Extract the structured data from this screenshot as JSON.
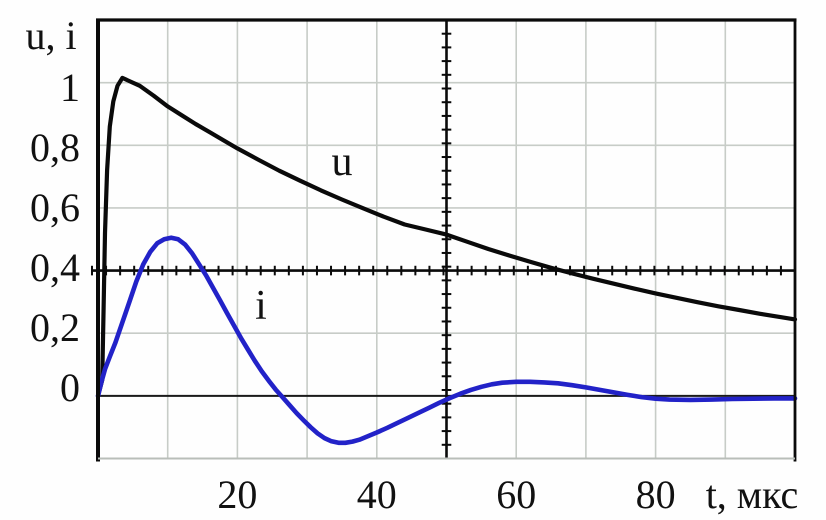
{
  "figure": {
    "y_axis_title": "u, i",
    "x_axis_title": "t, мкс",
    "curve_label_u": "u",
    "curve_label_i": "i",
    "background_color": "#fefefe",
    "text_color": "#111111"
  },
  "chart_data": {
    "type": "line",
    "title": "",
    "xlabel": "t, мкс",
    "ylabel": "u, i",
    "xlim": [
      0,
      100
    ],
    "ylim": [
      -0.2,
      1.2
    ],
    "x_tick_values": [
      20,
      40,
      60,
      80
    ],
    "x_tick_labels": [
      "20",
      "40",
      "60",
      "80"
    ],
    "y_tick_values": [
      1,
      0.8,
      0.6,
      0.4,
      0.2,
      0
    ],
    "y_tick_labels": [
      "1",
      "0,8",
      "0,6",
      "0,4",
      "0,2",
      "0"
    ],
    "grid": {
      "enabled": true,
      "x_step": 10,
      "y_step": 0.2,
      "color": "#c7ccc7"
    },
    "axes_cross_at": {
      "x": 50,
      "y": 0.4
    },
    "zero_line_y": 0,
    "legend_position": "none",
    "series": [
      {
        "name": "u",
        "color": "#0a0a0a",
        "width": 4.2,
        "points": [
          [
            0,
            0
          ],
          [
            0.6,
            0.05
          ],
          [
            0.8,
            0.28
          ],
          [
            1.0,
            0.52
          ],
          [
            1.3,
            0.72
          ],
          [
            1.7,
            0.86
          ],
          [
            2.2,
            0.94
          ],
          [
            2.8,
            0.99
          ],
          [
            3.5,
            1.015
          ],
          [
            4.5,
            1.005
          ],
          [
            6,
            0.99
          ],
          [
            8,
            0.958
          ],
          [
            10,
            0.924
          ],
          [
            12,
            0.896
          ],
          [
            14,
            0.868
          ],
          [
            16,
            0.842
          ],
          [
            18,
            0.816
          ],
          [
            20,
            0.79
          ],
          [
            23,
            0.754
          ],
          [
            26,
            0.719
          ],
          [
            29,
            0.687
          ],
          [
            32,
            0.656
          ],
          [
            35,
            0.627
          ],
          [
            38,
            0.599
          ],
          [
            41,
            0.572
          ],
          [
            44,
            0.547
          ],
          [
            47,
            0.531
          ],
          [
            50,
            0.515
          ],
          [
            53,
            0.492
          ],
          [
            56,
            0.469
          ],
          [
            59,
            0.448
          ],
          [
            62,
            0.428
          ],
          [
            65,
            0.409
          ],
          [
            68,
            0.391
          ],
          [
            71,
            0.374
          ],
          [
            74,
            0.358
          ],
          [
            77,
            0.342
          ],
          [
            80,
            0.327
          ],
          [
            83,
            0.313
          ],
          [
            86,
            0.299
          ],
          [
            89,
            0.286
          ],
          [
            92,
            0.274
          ],
          [
            95,
            0.262
          ],
          [
            98,
            0.251
          ],
          [
            100,
            0.244
          ]
        ]
      },
      {
        "name": "i",
        "color": "#2222c8",
        "width": 4.6,
        "points": [
          [
            0,
            0
          ],
          [
            0.5,
            0.045
          ],
          [
            1,
            0.085
          ],
          [
            1.7,
            0.125
          ],
          [
            2.5,
            0.17
          ],
          [
            3.5,
            0.235
          ],
          [
            4.5,
            0.3
          ],
          [
            5.5,
            0.365
          ],
          [
            6.5,
            0.42
          ],
          [
            7.5,
            0.46
          ],
          [
            8.5,
            0.487
          ],
          [
            9.5,
            0.5
          ],
          [
            10.5,
            0.505
          ],
          [
            11.5,
            0.5
          ],
          [
            12.5,
            0.483
          ],
          [
            13.5,
            0.455
          ],
          [
            14.5,
            0.42
          ],
          [
            15.5,
            0.385
          ],
          [
            16.5,
            0.345
          ],
          [
            17.5,
            0.305
          ],
          [
            18.5,
            0.265
          ],
          [
            19.5,
            0.225
          ],
          [
            20.5,
            0.185
          ],
          [
            21.5,
            0.148
          ],
          [
            22.5,
            0.112
          ],
          [
            23.5,
            0.078
          ],
          [
            24.5,
            0.048
          ],
          [
            25.5,
            0.02
          ],
          [
            26.5,
            -0.005
          ],
          [
            27.5,
            -0.03
          ],
          [
            28.5,
            -0.055
          ],
          [
            29.5,
            -0.078
          ],
          [
            30.5,
            -0.1
          ],
          [
            31.5,
            -0.12
          ],
          [
            32.5,
            -0.135
          ],
          [
            33.5,
            -0.145
          ],
          [
            34.5,
            -0.15
          ],
          [
            35.5,
            -0.15
          ],
          [
            36.5,
            -0.146
          ],
          [
            37.5,
            -0.14
          ],
          [
            38.5,
            -0.131
          ],
          [
            40,
            -0.117
          ],
          [
            41.5,
            -0.102
          ],
          [
            43,
            -0.086
          ],
          [
            44.5,
            -0.07
          ],
          [
            46,
            -0.054
          ],
          [
            47.5,
            -0.038
          ],
          [
            49,
            -0.022
          ],
          [
            50.5,
            -0.007
          ],
          [
            52,
            0.007
          ],
          [
            53.5,
            0.019
          ],
          [
            55,
            0.029
          ],
          [
            56.5,
            0.037
          ],
          [
            58,
            0.042
          ],
          [
            60,
            0.045
          ],
          [
            62,
            0.045
          ],
          [
            64,
            0.043
          ],
          [
            66,
            0.04
          ],
          [
            68,
            0.034
          ],
          [
            70,
            0.027
          ],
          [
            72,
            0.019
          ],
          [
            74,
            0.011
          ],
          [
            76,
            0.003
          ],
          [
            78,
            -0.004
          ],
          [
            80,
            -0.009
          ],
          [
            82,
            -0.012
          ],
          [
            85,
            -0.013
          ],
          [
            88,
            -0.012
          ],
          [
            91,
            -0.01
          ],
          [
            94,
            -0.009
          ],
          [
            97,
            -0.008
          ],
          [
            100,
            -0.008
          ]
        ]
      }
    ]
  }
}
